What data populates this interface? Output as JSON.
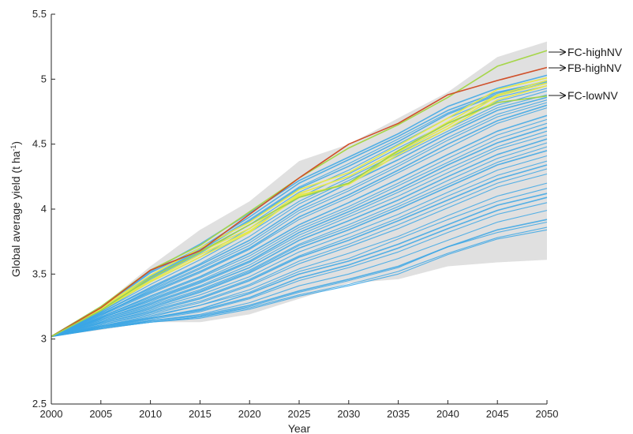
{
  "chart_data": {
    "type": "line",
    "xlabel": "Year",
    "ylabel_parts": [
      "Global average yield (t ha",
      "-1",
      ")"
    ],
    "xlim": [
      2000,
      2050
    ],
    "ylim": [
      2.5,
      5.5
    ],
    "xticks": [
      "2000",
      "2005",
      "2010",
      "2015",
      "2020",
      "2025",
      "2030",
      "2035",
      "2040",
      "2045",
      "2050"
    ],
    "yticks": [
      "2.5",
      "3",
      "3.5",
      "4",
      "4.5",
      "5",
      "5.5"
    ],
    "grid": false,
    "x": [
      2000,
      2005,
      2010,
      2015,
      2020,
      2025,
      2030,
      2035,
      2040,
      2045,
      2050
    ],
    "envelope": {
      "upper": [
        3.02,
        3.25,
        3.56,
        3.84,
        4.06,
        4.37,
        4.5,
        4.7,
        4.9,
        5.17,
        5.29
      ],
      "lower": [
        3.02,
        3.07,
        3.13,
        3.13,
        3.19,
        3.31,
        3.43,
        3.46,
        3.56,
        3.59,
        3.61
      ]
    },
    "series": [
      {
        "name": "FC-highNV",
        "values": [
          3.02,
          3.25,
          3.53,
          3.72,
          3.98,
          4.24,
          4.47,
          4.65,
          4.86,
          5.1,
          5.22
        ]
      },
      {
        "name": "FB-highNV",
        "values": [
          3.02,
          3.24,
          3.53,
          3.68,
          3.96,
          4.24,
          4.5,
          4.66,
          4.88,
          4.99,
          5.09
        ]
      },
      {
        "name": "FC-lowNV",
        "values": [
          3.02,
          3.22,
          3.47,
          3.67,
          3.88,
          4.09,
          4.2,
          4.45,
          4.66,
          4.82,
          4.87
        ]
      }
    ],
    "highlighted_runs": [
      [
        3.02,
        3.24,
        3.47,
        3.67,
        3.85,
        4.12,
        4.25,
        4.45,
        4.67,
        4.88,
        4.99
      ],
      [
        3.02,
        3.23,
        3.45,
        3.65,
        3.83,
        4.1,
        4.2,
        4.44,
        4.64,
        4.87,
        4.97
      ],
      [
        3.02,
        3.24,
        3.49,
        3.7,
        3.9,
        4.15,
        4.28,
        4.49,
        4.7,
        4.92,
        5.01
      ],
      [
        3.02,
        3.22,
        3.44,
        3.63,
        3.82,
        4.11,
        4.19,
        4.42,
        4.62,
        4.84,
        4.95
      ]
    ],
    "ensemble_runs": [
      [
        3.02,
        3.24,
        3.51,
        3.7,
        3.94,
        4.2,
        4.38,
        4.56,
        4.76,
        4.9,
        4.98
      ],
      [
        3.02,
        3.22,
        3.46,
        3.66,
        3.88,
        4.13,
        4.3,
        4.5,
        4.7,
        4.86,
        4.95
      ],
      [
        3.02,
        3.21,
        3.42,
        3.61,
        3.82,
        4.06,
        4.24,
        4.43,
        4.62,
        4.8,
        4.91
      ],
      [
        3.02,
        3.2,
        3.39,
        3.57,
        3.76,
        4.01,
        4.2,
        4.38,
        4.58,
        4.76,
        4.86
      ],
      [
        3.02,
        3.19,
        3.37,
        3.54,
        3.72,
        3.97,
        4.14,
        4.33,
        4.53,
        4.71,
        4.82
      ],
      [
        3.02,
        3.18,
        3.35,
        3.51,
        3.69,
        3.92,
        4.09,
        4.28,
        4.47,
        4.66,
        4.78
      ],
      [
        3.02,
        3.17,
        3.33,
        3.48,
        3.66,
        3.88,
        4.05,
        4.23,
        4.42,
        4.6,
        4.72
      ],
      [
        3.02,
        3.16,
        3.31,
        3.45,
        3.62,
        3.84,
        4.0,
        4.18,
        4.36,
        4.54,
        4.66
      ],
      [
        3.02,
        3.16,
        3.29,
        3.43,
        3.59,
        3.8,
        3.96,
        4.13,
        4.31,
        4.48,
        4.6
      ],
      [
        3.02,
        3.15,
        3.27,
        3.4,
        3.55,
        3.76,
        3.91,
        4.07,
        4.25,
        4.42,
        4.54
      ],
      [
        3.02,
        3.14,
        3.25,
        3.37,
        3.52,
        3.72,
        3.86,
        4.02,
        4.19,
        4.36,
        4.48
      ],
      [
        3.02,
        3.13,
        3.23,
        3.34,
        3.48,
        3.67,
        3.81,
        3.96,
        4.13,
        4.3,
        4.41
      ],
      [
        3.02,
        3.12,
        3.21,
        3.31,
        3.45,
        3.63,
        3.76,
        3.91,
        4.07,
        4.23,
        4.34
      ],
      [
        3.02,
        3.11,
        3.19,
        3.28,
        3.41,
        3.58,
        3.71,
        3.85,
        4.01,
        4.17,
        4.27
      ],
      [
        3.02,
        3.1,
        3.17,
        3.26,
        3.38,
        3.54,
        3.66,
        3.79,
        3.95,
        4.1,
        4.2
      ],
      [
        3.02,
        3.1,
        3.16,
        3.23,
        3.35,
        3.5,
        3.6,
        3.73,
        3.88,
        4.03,
        4.12
      ],
      [
        3.02,
        3.09,
        3.15,
        3.21,
        3.31,
        3.45,
        3.55,
        3.67,
        3.82,
        3.96,
        4.05
      ],
      [
        3.02,
        3.09,
        3.14,
        3.19,
        3.28,
        3.41,
        3.5,
        3.62,
        3.76,
        3.9,
        3.99
      ],
      [
        3.02,
        3.08,
        3.14,
        3.18,
        3.26,
        3.37,
        3.46,
        3.56,
        3.71,
        3.84,
        3.92
      ],
      [
        3.02,
        3.08,
        3.13,
        3.17,
        3.24,
        3.34,
        3.42,
        3.52,
        3.66,
        3.78,
        3.86
      ],
      [
        3.02,
        3.2,
        3.4,
        3.58,
        3.79,
        4.04,
        4.22,
        4.41,
        4.6,
        4.78,
        4.88
      ],
      [
        3.02,
        3.19,
        3.36,
        3.52,
        3.7,
        3.94,
        4.11,
        4.3,
        4.5,
        4.68,
        4.8
      ],
      [
        3.02,
        3.17,
        3.32,
        3.47,
        3.64,
        3.86,
        4.02,
        4.2,
        4.39,
        4.57,
        4.69
      ],
      [
        3.02,
        3.15,
        3.28,
        3.41,
        3.57,
        3.78,
        3.94,
        4.1,
        4.28,
        4.46,
        4.57
      ],
      [
        3.02,
        3.13,
        3.24,
        3.36,
        3.51,
        3.7,
        3.84,
        4.0,
        4.17,
        4.34,
        4.45
      ],
      [
        3.02,
        3.12,
        3.22,
        3.32,
        3.46,
        3.64,
        3.78,
        3.93,
        4.1,
        4.26,
        4.37
      ],
      [
        3.02,
        3.11,
        3.2,
        3.29,
        3.42,
        3.6,
        3.73,
        3.88,
        4.04,
        4.2,
        4.31
      ],
      [
        3.02,
        3.23,
        3.48,
        3.68,
        3.91,
        4.16,
        4.33,
        4.52,
        4.73,
        4.88,
        4.97
      ],
      [
        3.02,
        3.21,
        3.44,
        3.63,
        3.85,
        4.09,
        4.27,
        4.47,
        4.66,
        4.83,
        4.93
      ],
      [
        3.02,
        3.18,
        3.38,
        3.55,
        3.74,
        3.99,
        4.16,
        4.35,
        4.55,
        4.73,
        4.84
      ],
      [
        3.02,
        3.16,
        3.3,
        3.44,
        3.6,
        3.82,
        3.98,
        4.15,
        4.34,
        4.51,
        4.63
      ],
      [
        3.02,
        3.14,
        3.26,
        3.38,
        3.53,
        3.73,
        3.88,
        4.04,
        4.22,
        4.39,
        4.51
      ],
      [
        3.02,
        3.1,
        3.18,
        3.26,
        3.36,
        3.52,
        3.62,
        3.77,
        3.92,
        4.06,
        4.16
      ],
      [
        3.02,
        3.09,
        3.16,
        3.22,
        3.32,
        3.47,
        3.57,
        3.7,
        3.85,
        3.99,
        4.09
      ],
      [
        3.02,
        3.08,
        3.13,
        3.17,
        3.25,
        3.36,
        3.45,
        3.55,
        3.71,
        3.82,
        3.9
      ],
      [
        3.02,
        3.08,
        3.13,
        3.16,
        3.23,
        3.33,
        3.41,
        3.5,
        3.65,
        3.77,
        3.84
      ],
      [
        3.02,
        3.25,
        3.52,
        3.73,
        3.97,
        4.22,
        4.4,
        4.58,
        4.79,
        4.93,
        5.03
      ],
      [
        3.02,
        3.24,
        3.49,
        3.69,
        3.92,
        4.17,
        4.35,
        4.54,
        4.74,
        4.89,
        4.99
      ]
    ],
    "annotations": [
      "FC-highNV",
      "FB-highNV",
      "FC-lowNV"
    ],
    "colors": {
      "envelope": "#e0e0e0",
      "ensemble": "#3aa6e5",
      "fc_high": "#a6d64a",
      "fb_high": "#d0502a",
      "fc_low": "#9bd24c",
      "highlight": "#e5e84a",
      "axis": "#262626"
    }
  }
}
